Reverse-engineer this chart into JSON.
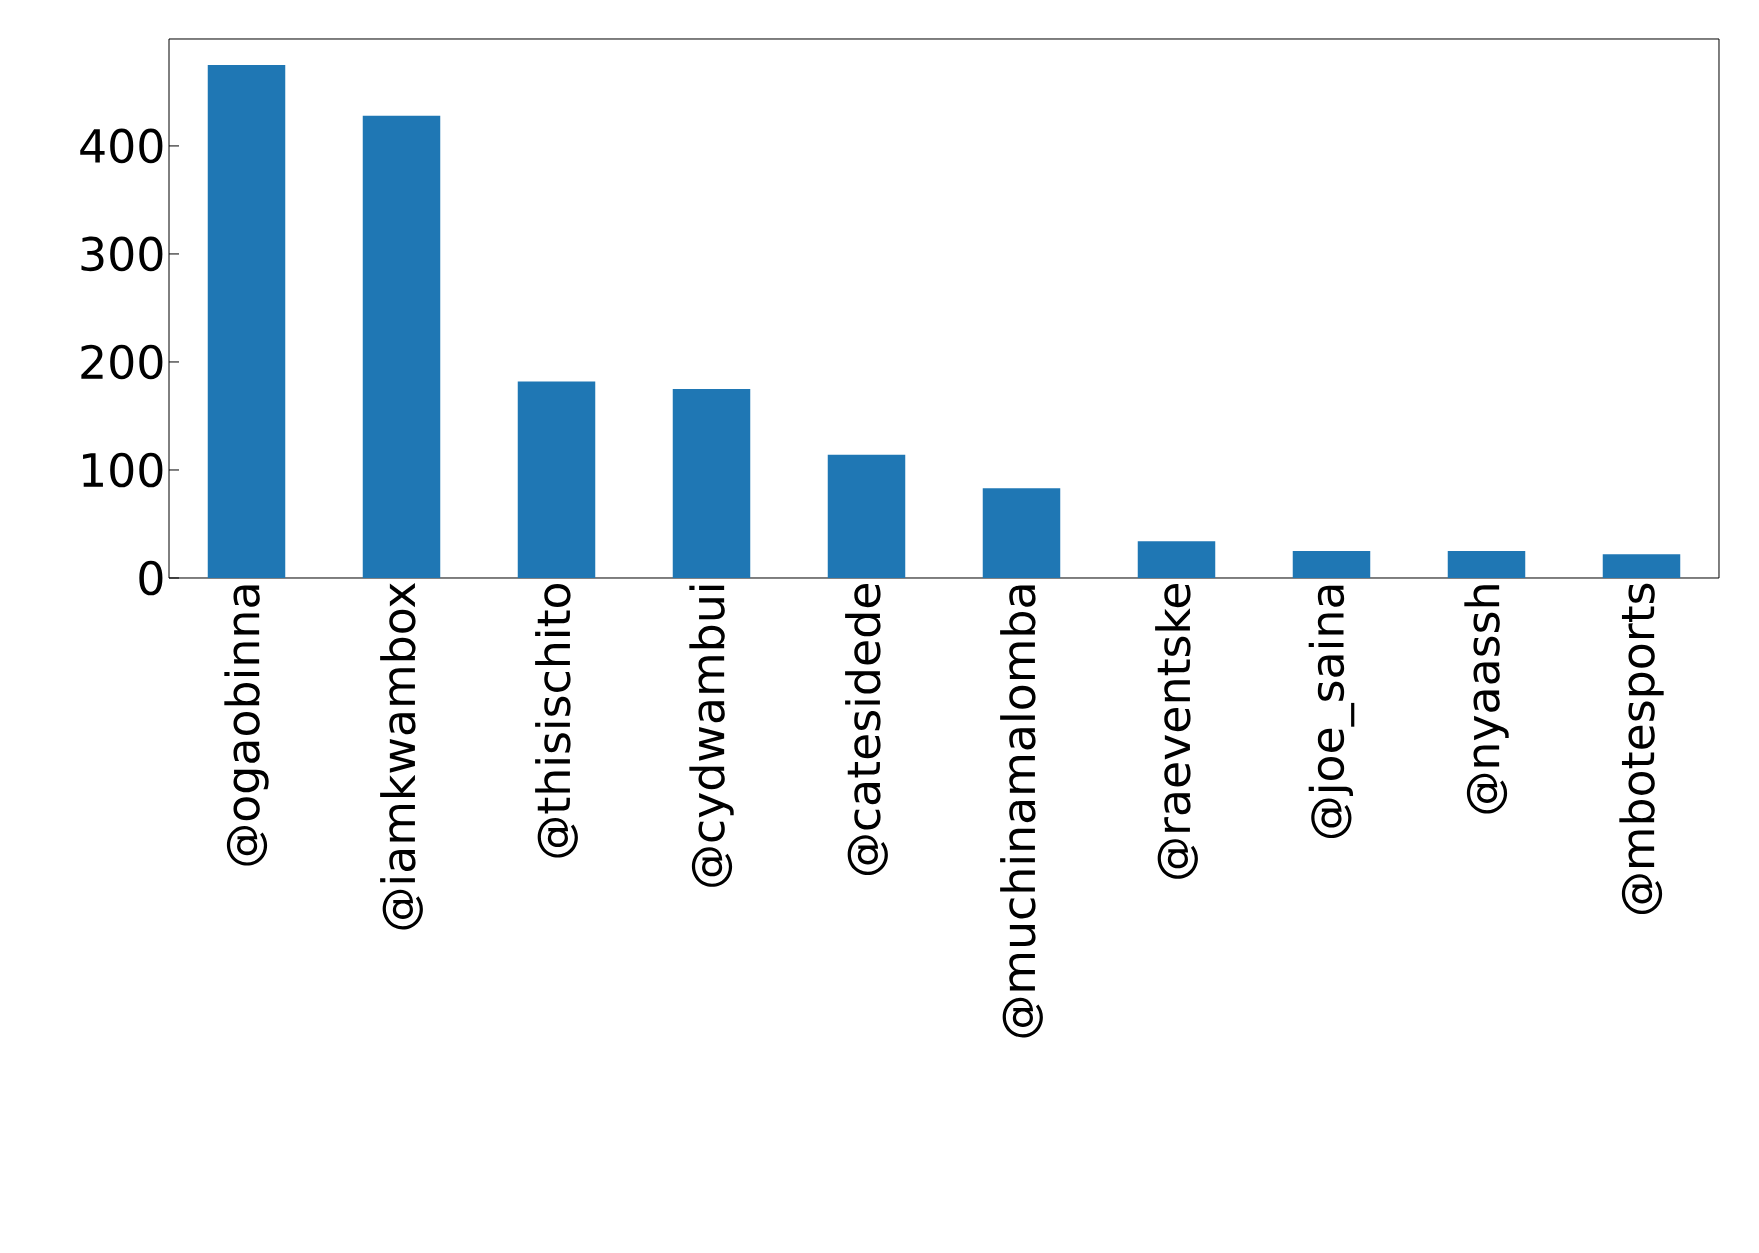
{
  "chart_data": {
    "type": "bar",
    "categories": [
      "@ogaobinna",
      "@iamkwambox",
      "@thisischito",
      "@cydwambui",
      "@catesidede",
      "@muchinamalomba",
      "@raeventske",
      "@joe_saina",
      "@nyaassh",
      "@mbotesports"
    ],
    "values": [
      475,
      428,
      182,
      175,
      114,
      83,
      34,
      25,
      25,
      22
    ],
    "color": "#1f77b4",
    "ylim": [
      0,
      499
    ],
    "yticks": [
      0,
      100,
      200,
      300,
      400
    ],
    "grid": false
  }
}
